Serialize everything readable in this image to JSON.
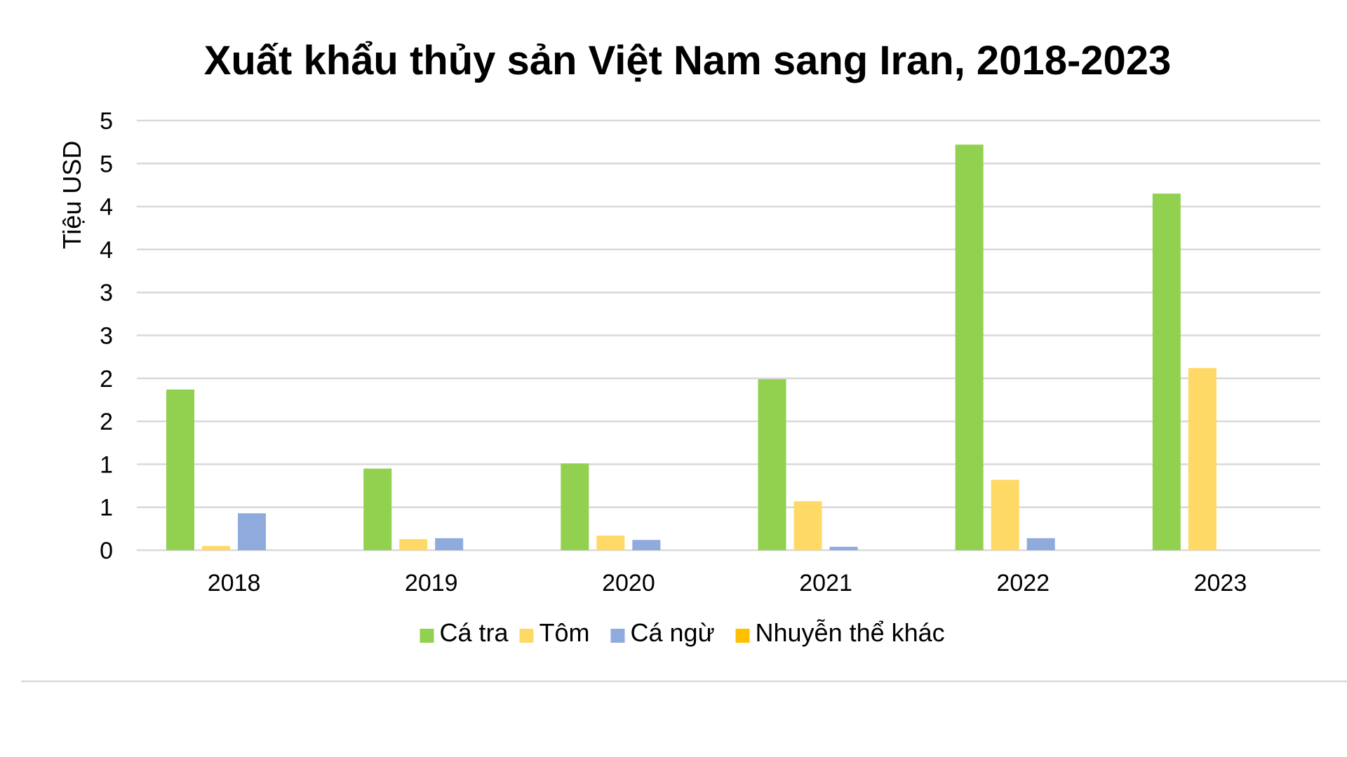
{
  "chart_data": {
    "type": "bar",
    "title": "Xuất khẩu thủy sản Việt Nam sang Iran, 2018-2023",
    "xlabel": "",
    "ylabel": "Tiệu USD",
    "categories": [
      "2018",
      "2019",
      "2020",
      "2021",
      "2022",
      "2023"
    ],
    "ylim": [
      0,
      5
    ],
    "ytick_values": [
      0,
      0.5,
      1,
      1.5,
      2,
      2.5,
      3,
      3.5,
      4,
      4.5,
      5
    ],
    "ytick_labels": [
      "0",
      "1",
      "1",
      "2",
      "2",
      "3",
      "3",
      "4",
      "4",
      "5",
      "5"
    ],
    "grid": true,
    "legend_position": "bottom",
    "series": [
      {
        "name": "Cá tra",
        "color": "#92d050",
        "values": [
          1.87,
          0.95,
          1.01,
          1.99,
          4.72,
          4.15
        ]
      },
      {
        "name": "Tôm",
        "color": "#ffd966",
        "values": [
          0.05,
          0.13,
          0.17,
          0.57,
          0.82,
          2.12
        ]
      },
      {
        "name": "Cá ngừ",
        "color": "#8faadc",
        "values": [
          0.43,
          0.14,
          0.12,
          0.04,
          0.14,
          0.0
        ]
      },
      {
        "name": "Nhuyễn thể khác",
        "color": "#ffc000",
        "values": [
          0,
          0,
          0,
          0,
          0,
          0
        ]
      }
    ]
  }
}
